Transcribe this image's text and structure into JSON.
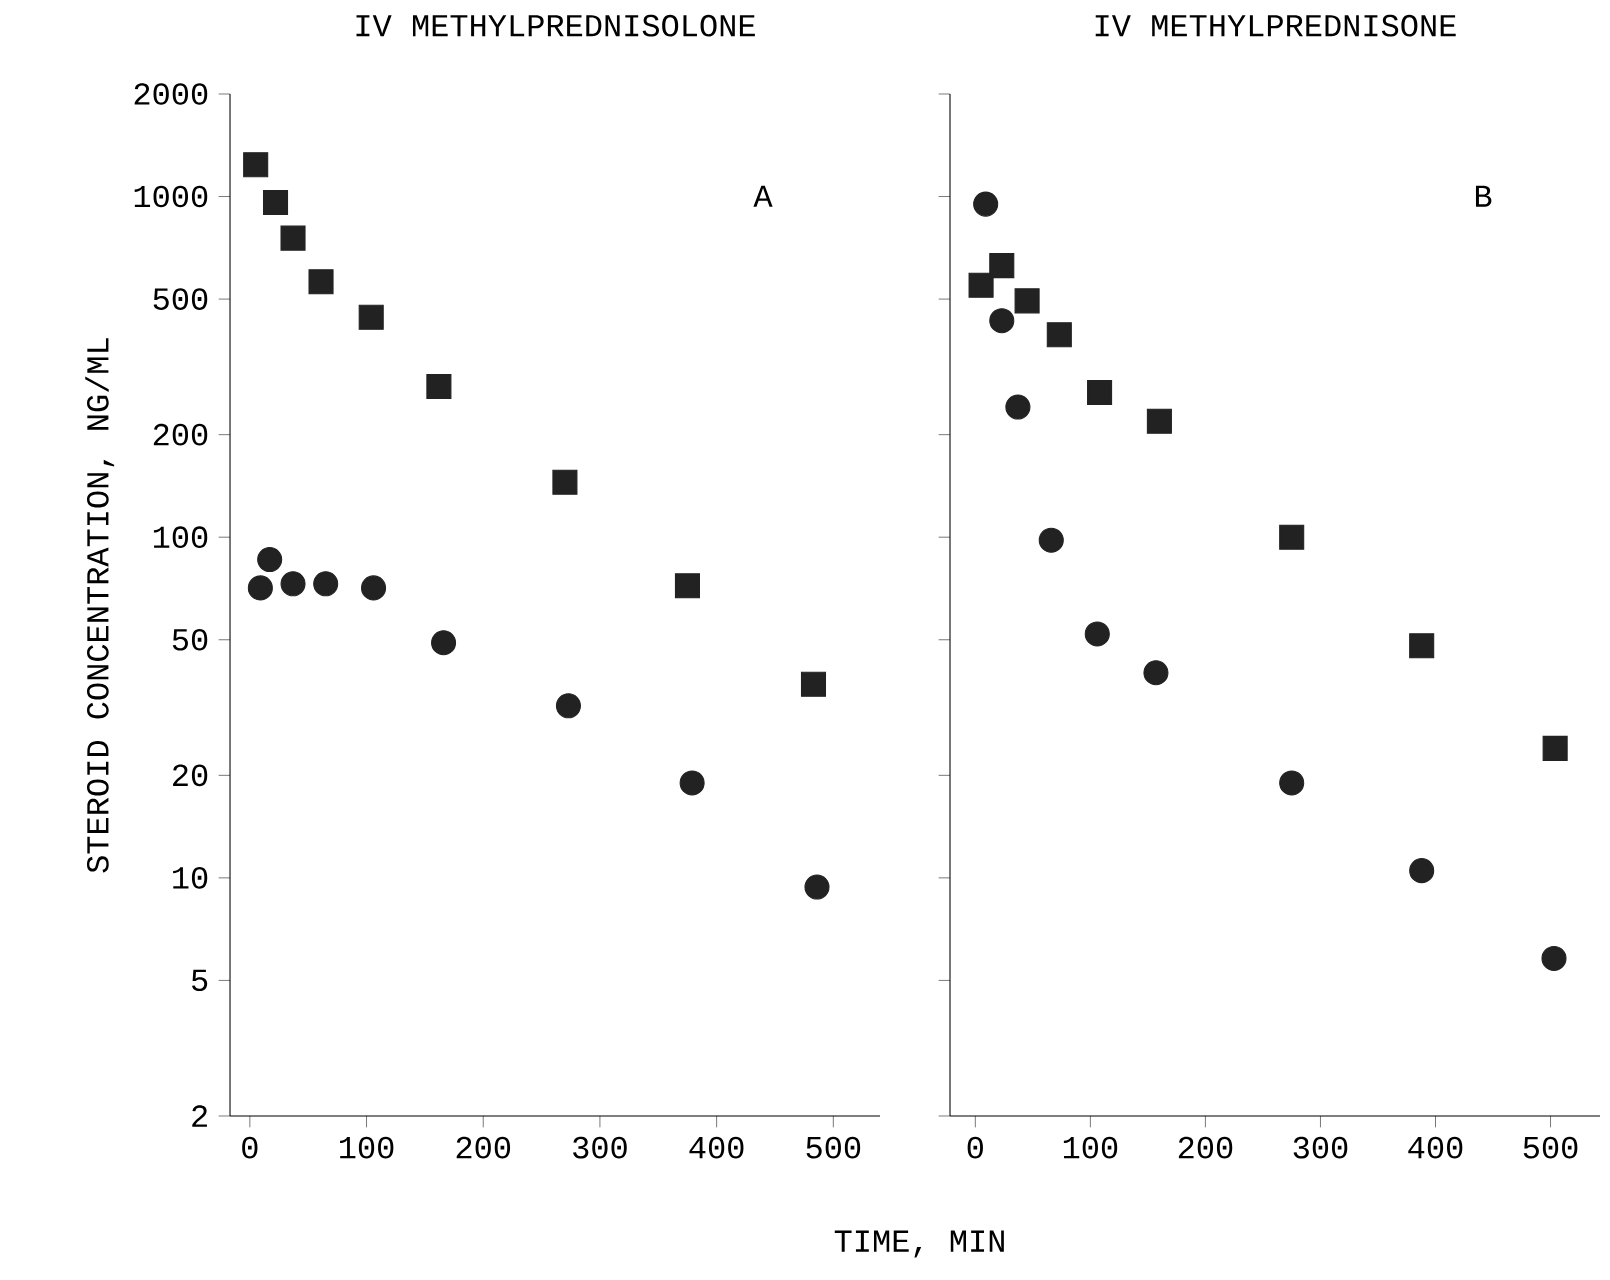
{
  "chart_data": [
    {
      "type": "scatter",
      "title": "IV METHYLPREDNISOLONE",
      "ylabel": "STEROID CONCENTRATION, NG/ML",
      "xlabel": "TIME, MIN",
      "log": "y",
      "grid": false,
      "xlim": [
        -17,
        540
      ],
      "ylim": [
        2,
        2000
      ],
      "xticks": [
        0,
        100,
        200,
        300,
        400,
        500
      ],
      "yticks": [
        2,
        5,
        10,
        20,
        50,
        100,
        200,
        500,
        1000,
        2000
      ],
      "annotations": [
        "A"
      ],
      "series": [
        {
          "color": "#222222",
          "marker": "square",
          "x": [
            5,
            22,
            37,
            61,
            104,
            162,
            270,
            375,
            483
          ],
          "values": [
            1240,
            960,
            755,
            562,
            442,
            277,
            145,
            72,
            37
          ]
        },
        {
          "color": "#222222",
          "marker": "circle",
          "x": [
            9,
            17,
            37,
            65,
            106,
            166,
            273,
            379,
            486
          ],
          "values": [
            71,
            86,
            73,
            73,
            71,
            49,
            32,
            19,
            9.4
          ]
        }
      ]
    },
    {
      "type": "scatter",
      "title": "IV METHYLPREDNISONE",
      "log": "y",
      "grid": false,
      "tick_labels": "x",
      "xlim": [
        -22,
        543
      ],
      "ylim": [
        2,
        2000
      ],
      "xticks": [
        0,
        100,
        200,
        300,
        400,
        500
      ],
      "yticks": [
        2,
        5,
        10,
        20,
        50,
        100,
        200,
        500,
        1000,
        2000
      ],
      "annotations": [
        "B"
      ],
      "series": [
        {
          "color": "#222222",
          "marker": "square",
          "x": [
            5,
            23,
            45,
            73,
            108,
            160,
            275,
            388,
            504
          ],
          "values": [
            549,
            627,
            494,
            393,
            266,
            219,
            100,
            48,
            24
          ]
        },
        {
          "color": "#222222",
          "marker": "circle",
          "x": [
            9,
            23,
            37,
            66,
            106,
            157,
            275,
            388,
            503
          ],
          "values": [
            950,
            432,
            241,
            98,
            52,
            40,
            19,
            10.5,
            5.8
          ]
        }
      ]
    }
  ]
}
